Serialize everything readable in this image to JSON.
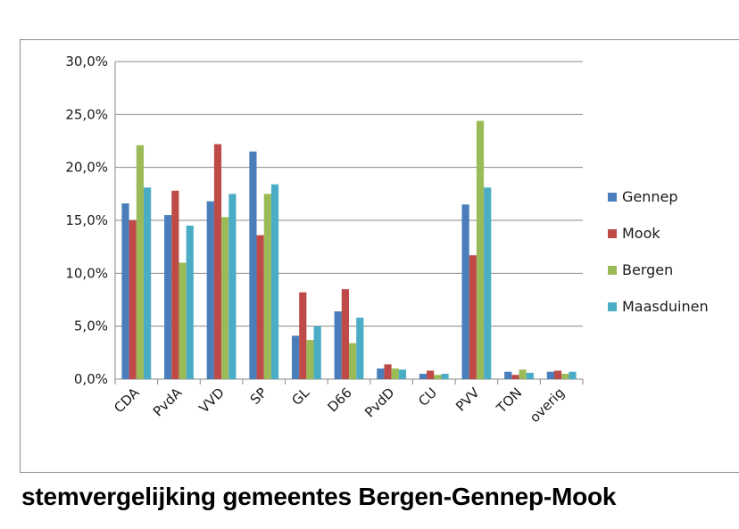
{
  "caption": "stemvergelijking gemeentes Bergen-Gennep-Mook",
  "chart_data": {
    "type": "bar",
    "categories": [
      "CDA",
      "PvdA",
      "VVD",
      "SP",
      "GL",
      "D66",
      "PvdD",
      "CU",
      "PVV",
      "TON",
      "overig"
    ],
    "series": [
      {
        "name": "Gennep",
        "color": "#4a7ebb",
        "values": [
          16.6,
          15.5,
          16.8,
          21.5,
          4.1,
          6.4,
          1.0,
          0.5,
          16.5,
          0.7,
          0.7
        ]
      },
      {
        "name": "Mook",
        "color": "#be4b48",
        "values": [
          15.0,
          17.8,
          22.2,
          13.6,
          8.2,
          8.5,
          1.4,
          0.8,
          11.7,
          0.4,
          0.8
        ]
      },
      {
        "name": "Bergen",
        "color": "#9bbb59",
        "values": [
          22.1,
          11.0,
          15.3,
          17.5,
          3.7,
          3.4,
          1.0,
          0.4,
          24.4,
          0.9,
          0.5
        ]
      },
      {
        "name": "Maasduinen",
        "color": "#4bacc6",
        "values": [
          18.1,
          14.5,
          17.5,
          18.4,
          5.0,
          5.8,
          0.9,
          0.5,
          18.1,
          0.6,
          0.7
        ]
      }
    ],
    "yticks": [
      "0,0%",
      "5,0%",
      "10,0%",
      "15,0%",
      "20,0%",
      "25,0%",
      "30,0%"
    ],
    "ylim": [
      0,
      30
    ],
    "grid": true,
    "legend_position": "right"
  }
}
